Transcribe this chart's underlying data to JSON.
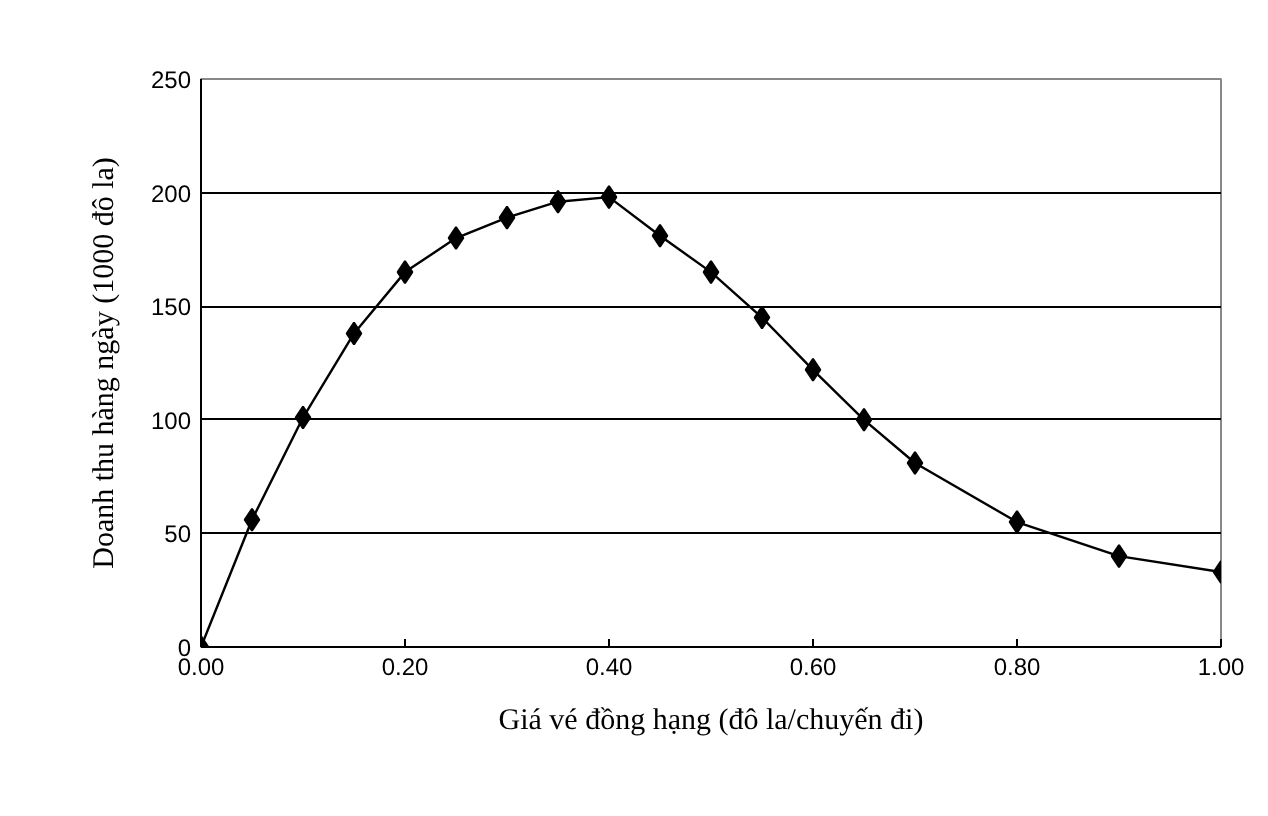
{
  "chart_data": {
    "type": "line",
    "xlabel": "Giá vé đồng hạng (đô la/chuyến đi)",
    "ylabel": "Doanh thu hàng ngày (1000 đô la)",
    "x": [
      0,
      0.05,
      0.1,
      0.15,
      0.2,
      0.25,
      0.3,
      0.35,
      0.4,
      0.45,
      0.5,
      0.55,
      0.6,
      0.65,
      0.7,
      0.8,
      0.9,
      1.0
    ],
    "series": [
      {
        "color": "#000000",
        "values": [
          0,
          56,
          101,
          138,
          165,
          180,
          189,
          196,
          198,
          181,
          165,
          145,
          122,
          100,
          81,
          55,
          40,
          33
        ]
      }
    ],
    "xlim": [
      0,
      1
    ],
    "ylim": [
      0,
      250
    ],
    "xticks": [
      {
        "value": 0,
        "label": "0.00"
      },
      {
        "value": 0.2,
        "label": "0.20"
      },
      {
        "value": 0.4,
        "label": "0.40"
      },
      {
        "value": 0.6,
        "label": "0.60"
      },
      {
        "value": 0.8,
        "label": "0.80"
      },
      {
        "value": 1,
        "label": "1.00"
      }
    ],
    "yticks": [
      0,
      50,
      100,
      150,
      200,
      250
    ],
    "grid": "y",
    "marker": "diamond",
    "line_style": "solid"
  }
}
